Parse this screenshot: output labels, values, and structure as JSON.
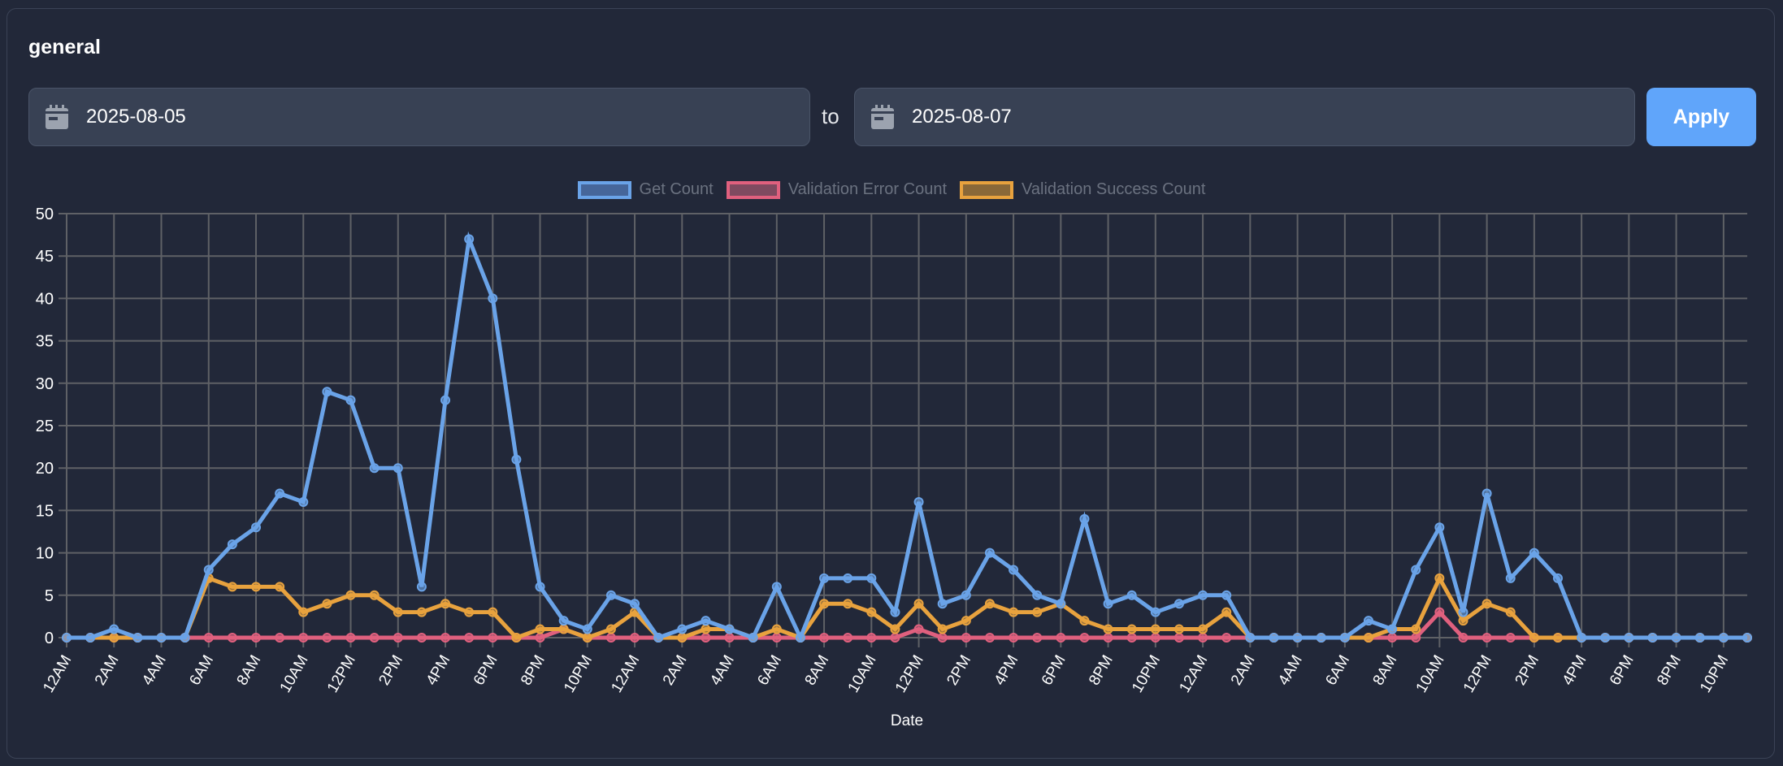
{
  "header": {
    "title": "general"
  },
  "filters": {
    "start_date": "2025-08-05",
    "end_date": "2025-08-07",
    "separator": "to",
    "apply_label": "Apply",
    "calendar_icon": "calendar-icon"
  },
  "colors": {
    "accent": "#60a5fa",
    "get": "#6aa3e8",
    "error": "#e0607e",
    "success": "#e8a23e"
  },
  "chart_data": {
    "type": "line",
    "xlabel": "Date",
    "ylabel": "",
    "ylim": [
      0,
      50
    ],
    "yticks": [
      0,
      5,
      10,
      15,
      20,
      25,
      30,
      35,
      40,
      45,
      50
    ],
    "grid": true,
    "legend": "top",
    "x_tick_labels": [
      "12AM",
      "2AM",
      "4AM",
      "6AM",
      "8AM",
      "10AM",
      "12PM",
      "2PM",
      "4PM",
      "6PM",
      "8PM",
      "10PM",
      "12AM",
      "2AM",
      "4AM",
      "6AM",
      "8AM",
      "10AM",
      "12PM",
      "2PM",
      "4PM",
      "6PM",
      "8PM",
      "10PM",
      "12AM",
      "2AM",
      "4AM",
      "6AM",
      "8AM",
      "10AM",
      "12PM",
      "2PM",
      "4PM",
      "6PM",
      "8PM",
      "10PM"
    ],
    "series": [
      {
        "name": "Get Count",
        "color": "#6aa3e8",
        "values": [
          0,
          0,
          1,
          0,
          0,
          0,
          8,
          11,
          13,
          17,
          16,
          29,
          28,
          20,
          20,
          6,
          28,
          47,
          40,
          21,
          6,
          2,
          1,
          5,
          4,
          0,
          1,
          2,
          1,
          0,
          6,
          0,
          7,
          7,
          7,
          3,
          16,
          4,
          5,
          10,
          8,
          5,
          4,
          14,
          4,
          5,
          3,
          4,
          5,
          5,
          0,
          0,
          0,
          0,
          0,
          2,
          1,
          8,
          13,
          3,
          17,
          7,
          10,
          7,
          0,
          0,
          0,
          0,
          0,
          0,
          0,
          0
        ]
      },
      {
        "name": "Validation Error Count",
        "color": "#e0607e",
        "values": [
          0,
          0,
          0,
          0,
          0,
          0,
          0,
          0,
          0,
          0,
          0,
          0,
          0,
          0,
          0,
          0,
          0,
          0,
          0,
          0,
          0,
          1,
          0,
          0,
          0,
          0,
          0,
          0,
          0,
          0,
          0,
          0,
          0,
          0,
          0,
          0,
          1,
          0,
          0,
          0,
          0,
          0,
          0,
          0,
          0,
          0,
          0,
          0,
          0,
          0,
          0,
          0,
          0,
          0,
          0,
          0,
          0,
          0,
          3,
          0,
          0,
          0,
          0,
          0,
          0,
          0,
          0,
          0,
          0,
          0,
          0,
          0
        ]
      },
      {
        "name": "Validation Success Count",
        "color": "#e8a23e",
        "values": [
          0,
          0,
          0,
          0,
          0,
          0,
          7,
          6,
          6,
          6,
          3,
          4,
          5,
          5,
          3,
          3,
          4,
          3,
          3,
          0,
          1,
          1,
          0,
          1,
          3,
          0,
          0,
          1,
          1,
          0,
          1,
          0,
          4,
          4,
          3,
          1,
          4,
          1,
          2,
          4,
          3,
          3,
          4,
          2,
          1,
          1,
          1,
          1,
          1,
          3,
          0,
          0,
          0,
          0,
          0,
          0,
          1,
          1,
          7,
          2,
          4,
          3,
          0,
          0,
          0,
          0,
          0,
          0,
          0,
          0,
          0,
          0
        ]
      }
    ]
  }
}
